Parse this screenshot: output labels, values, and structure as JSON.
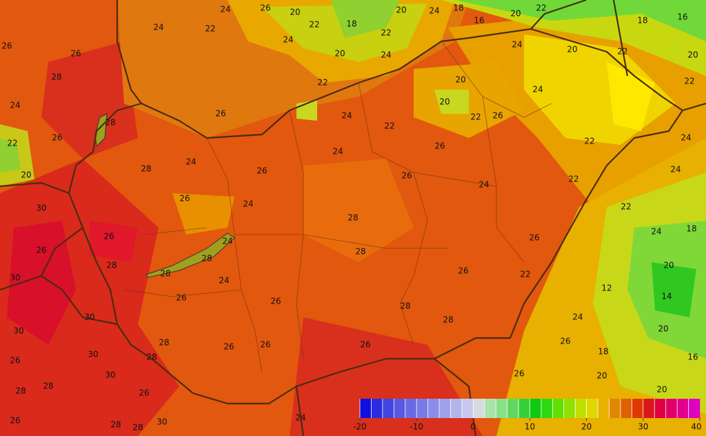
{
  "contour_labels": [
    24,
    26,
    20,
    22,
    18,
    20,
    24,
    18,
    16,
    20,
    22,
    20,
    18,
    16,
    24,
    22,
    24,
    20,
    22,
    24,
    24,
    20,
    22,
    20,
    22,
    26,
    26,
    28,
    24,
    22,
    20,
    26,
    28,
    26,
    22,
    24,
    22,
    20,
    22,
    26,
    24,
    22,
    24,
    24,
    22,
    22,
    24,
    18,
    20,
    14,
    12,
    20,
    16,
    18,
    20,
    20,
    24,
    26,
    22,
    26,
    24,
    26,
    26,
    24,
    26,
    24,
    28,
    26,
    24,
    26,
    30,
    26,
    28,
    28,
    28,
    24,
    24,
    26,
    30,
    30,
    30,
    26,
    28,
    26,
    28,
    28,
    26,
    26,
    26,
    28,
    28,
    30,
    26,
    28,
    30,
    28,
    26,
    26,
    26,
    28,
    28,
    30,
    24,
    28
  ],
  "colorbar": {
    "range": [
      -20,
      40
    ],
    "ticks": [
      -20,
      -10,
      0,
      10,
      20,
      30,
      40
    ],
    "colors": [
      "#1010e0",
      "#2c2ce0",
      "#4444e0",
      "#5858e2",
      "#6a6ae4",
      "#7a7ae6",
      "#8c8ce8",
      "#a0a0ea",
      "#b4b4ec",
      "#c8c8ee",
      "#d8d8e0",
      "#a8e4a8",
      "#88e088",
      "#60d860",
      "#38d038",
      "#10c810",
      "#30d810",
      "#60e000",
      "#90e000",
      "#c0e000",
      "#e0d800",
      "#e8b000",
      "#e08800",
      "#e06000",
      "#e03800",
      "#d81818",
      "#e00040",
      "#e00068",
      "#e00090",
      "#e000c0"
    ]
  }
}
